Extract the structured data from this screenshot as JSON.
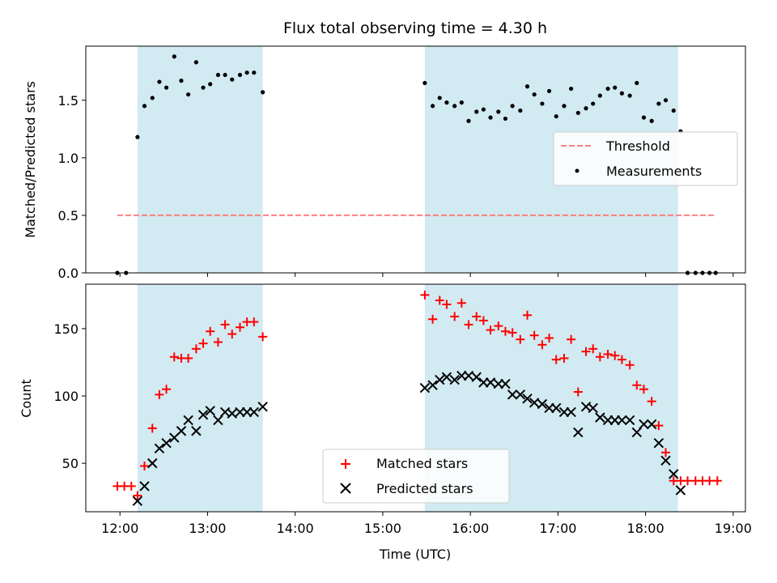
{
  "chart_data": [
    {
      "type": "scatter",
      "title": "Flux total observing time = 4.30 h",
      "xlabel": "",
      "ylabel": "Matched/Predicted stars",
      "xlim_hours": [
        11.61,
        19.14
      ],
      "ylim": [
        0,
        1.97
      ],
      "yticks": [
        "0.0",
        "0.5",
        "1.0",
        "1.5"
      ],
      "shaded_intervals": [
        [
          12.2,
          13.63
        ],
        [
          15.48,
          18.37
        ]
      ],
      "shade_color": "#add8e6",
      "threshold": {
        "name": "Threshold",
        "value": 0.5,
        "x_range": [
          11.97,
          18.8
        ],
        "color": "#ff7f7f",
        "style": "dashed"
      },
      "measurements": {
        "name": "Measurements",
        "color": "#000000",
        "x": [
          11.97,
          12.07,
          12.2,
          12.28,
          12.37,
          12.45,
          12.53,
          12.62,
          12.7,
          12.78,
          12.87,
          12.95,
          13.03,
          13.12,
          13.2,
          13.28,
          13.37,
          13.45,
          13.53,
          13.63,
          15.48,
          15.57,
          15.65,
          15.73,
          15.82,
          15.9,
          15.98,
          16.07,
          16.15,
          16.23,
          16.32,
          16.4,
          16.48,
          16.57,
          16.65,
          16.73,
          16.82,
          16.9,
          16.98,
          17.07,
          17.15,
          17.23,
          17.32,
          17.4,
          17.48,
          17.57,
          17.65,
          17.73,
          17.82,
          17.9,
          17.98,
          18.07,
          18.15,
          18.23,
          18.32,
          18.4,
          18.48,
          18.57,
          18.65,
          18.73,
          18.8
        ],
        "y": [
          0.0,
          0.0,
          1.18,
          1.45,
          1.52,
          1.66,
          1.61,
          1.88,
          1.67,
          1.55,
          1.83,
          1.61,
          1.64,
          1.72,
          1.72,
          1.68,
          1.72,
          1.74,
          1.74,
          1.57,
          1.65,
          1.45,
          1.52,
          1.48,
          1.45,
          1.48,
          1.32,
          1.4,
          1.42,
          1.35,
          1.4,
          1.34,
          1.45,
          1.41,
          1.62,
          1.55,
          1.47,
          1.58,
          1.36,
          1.45,
          1.6,
          1.39,
          1.43,
          1.47,
          1.54,
          1.6,
          1.61,
          1.56,
          1.54,
          1.65,
          1.35,
          1.32,
          1.47,
          1.5,
          1.41,
          1.23,
          0.0,
          0.0,
          0.0,
          0.0,
          0.0
        ]
      },
      "legend": [
        "Threshold",
        "Measurements"
      ],
      "legend_loc": "center-right"
    },
    {
      "type": "scatter",
      "title": "",
      "xlabel": "Time (UTC)",
      "ylabel": "Count",
      "xlim_hours": [
        11.61,
        19.14
      ],
      "ylim": [
        14,
        183
      ],
      "yticks": [
        50,
        100,
        150
      ],
      "xtick_hours": [
        12,
        13,
        14,
        15,
        16,
        17,
        18,
        19
      ],
      "xtick_labels": [
        "12:00",
        "13:00",
        "14:00",
        "15:00",
        "16:00",
        "17:00",
        "18:00",
        "19:00"
      ],
      "shaded_intervals": [
        [
          12.2,
          13.63
        ],
        [
          15.48,
          18.37
        ]
      ],
      "series": [
        {
          "name": "Matched stars",
          "marker": "plus",
          "color": "#ff0000",
          "x": [
            11.97,
            12.05,
            12.13,
            12.2,
            12.28,
            12.37,
            12.45,
            12.53,
            12.62,
            12.7,
            12.78,
            12.87,
            12.95,
            13.03,
            13.12,
            13.2,
            13.28,
            13.37,
            13.45,
            13.53,
            13.63,
            15.48,
            15.57,
            15.65,
            15.73,
            15.82,
            15.9,
            15.98,
            16.07,
            16.15,
            16.23,
            16.32,
            16.4,
            16.48,
            16.57,
            16.65,
            16.73,
            16.82,
            16.9,
            16.98,
            17.07,
            17.15,
            17.23,
            17.32,
            17.4,
            17.48,
            17.57,
            17.65,
            17.73,
            17.82,
            17.9,
            17.98,
            18.07,
            18.15,
            18.23,
            18.32,
            18.4,
            18.48,
            18.57,
            18.65,
            18.73,
            18.82
          ],
          "y": [
            33,
            33,
            33,
            26,
            48,
            76,
            101,
            105,
            129,
            128,
            128,
            135,
            139,
            148,
            140,
            153,
            146,
            151,
            155,
            155,
            144,
            175,
            157,
            171,
            168,
            159,
            169,
            153,
            159,
            156,
            149,
            152,
            148,
            147,
            142,
            160,
            145,
            138,
            143,
            127,
            128,
            142,
            103,
            133,
            135,
            129,
            131,
            130,
            127,
            123,
            108,
            105,
            96,
            78,
            58,
            37,
            37,
            37,
            37,
            37,
            37,
            37
          ]
        },
        {
          "name": "Predicted stars",
          "marker": "x",
          "color": "#000000",
          "x": [
            12.2,
            12.28,
            12.37,
            12.45,
            12.53,
            12.62,
            12.7,
            12.78,
            12.87,
            12.95,
            13.03,
            13.12,
            13.2,
            13.28,
            13.37,
            13.45,
            13.53,
            13.63,
            15.48,
            15.57,
            15.65,
            15.73,
            15.82,
            15.9,
            15.98,
            16.07,
            16.15,
            16.23,
            16.32,
            16.4,
            16.48,
            16.57,
            16.65,
            16.73,
            16.82,
            16.9,
            16.98,
            17.07,
            17.15,
            17.23,
            17.32,
            17.4,
            17.48,
            17.57,
            17.65,
            17.73,
            17.82,
            17.9,
            17.98,
            18.07,
            18.15,
            18.23,
            18.32,
            18.4
          ],
          "y": [
            22,
            33,
            50,
            61,
            65,
            69,
            74,
            82,
            74,
            86,
            89,
            82,
            88,
            87,
            88,
            88,
            88,
            92,
            106,
            108,
            112,
            114,
            112,
            115,
            115,
            114,
            110,
            110,
            109,
            109,
            101,
            101,
            98,
            95,
            94,
            91,
            91,
            88,
            88,
            73,
            92,
            91,
            84,
            82,
            82,
            82,
            82,
            73,
            79,
            79,
            65,
            52,
            42,
            30
          ]
        }
      ],
      "legend": [
        "Matched stars",
        "Predicted stars"
      ],
      "legend_loc": "lower-center"
    }
  ]
}
